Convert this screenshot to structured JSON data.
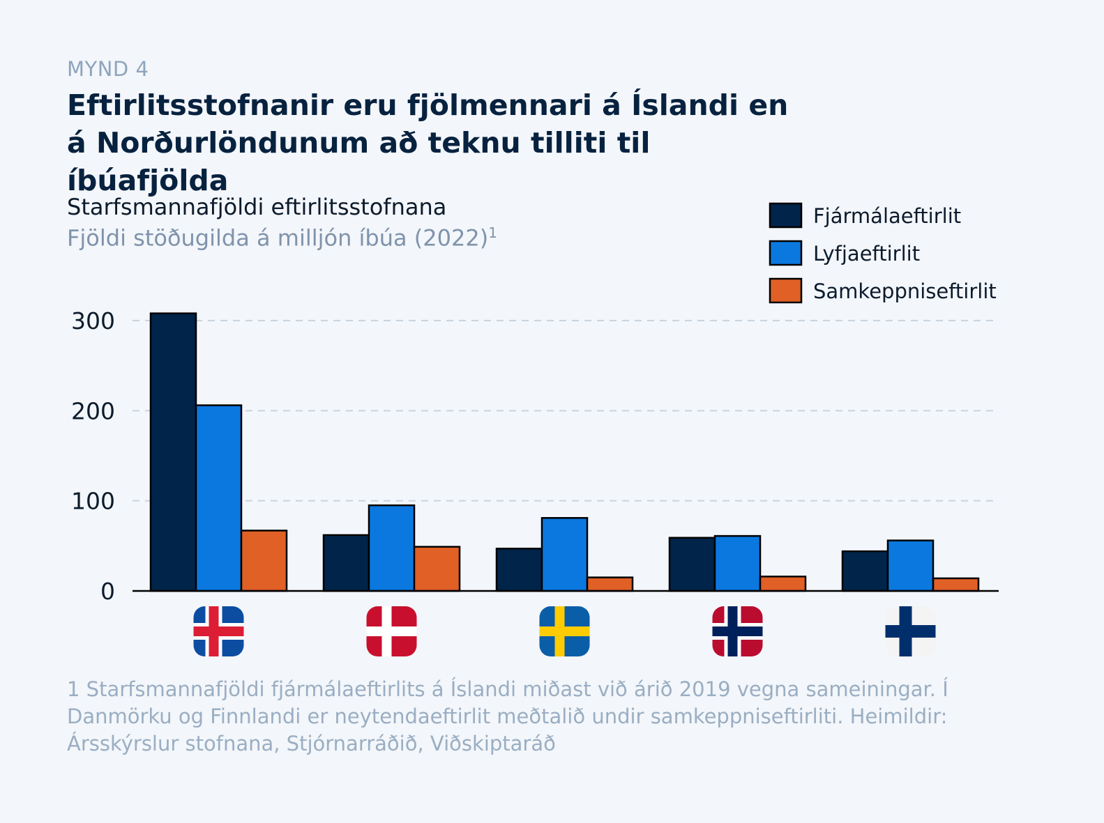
{
  "header": {
    "kicker": "MYND 4",
    "title": "Eftirlitsstofnanir eru fjölmennari á Íslandi en á Norðurlöndunum að teknu tilliti til íbúafjölda",
    "subtitle": "Starfsmannafjöldi eftirlitsstofnana",
    "unit": "Fjöldi stöðugilda á milljón íbúa (2022)",
    "unit_sup": "1"
  },
  "footnote": "1 Starfsmannafjöldi fjármálaeftirlits á Íslandi miðast við árið 2019 vegna sameiningar. Í Danmörku og Finnlandi er neytendaeftirlit meðtalið undir samkeppniseftirliti. Heimildir: Ársskýrslur stofnana, Stjórnarráðið, Viðskiptaráð",
  "colors": {
    "fjarmal": "#00244a",
    "lyfja": "#0b78e0",
    "samkeppni": "#e06026",
    "grid": "#c9d4df",
    "axis": "#0c1b2c"
  },
  "chart_data": {
    "type": "bar",
    "categories": [
      "Ísland",
      "Danmörk",
      "Svíþjóð",
      "Noregur",
      "Finnland"
    ],
    "category_icons": [
      "iceland-flag-icon",
      "denmark-flag-icon",
      "sweden-flag-icon",
      "norway-flag-icon",
      "finland-flag-icon"
    ],
    "series": [
      {
        "name": "Fjármálaeftirlit",
        "color": "#00244a",
        "values": [
          308,
          62,
          47,
          59,
          44
        ]
      },
      {
        "name": "Lyfjaeftirlit",
        "color": "#0b78e0",
        "values": [
          206,
          95,
          81,
          61,
          56
        ]
      },
      {
        "name": "Samkeppniseftirlit",
        "color": "#e06026",
        "values": [
          67,
          49,
          15,
          16,
          14
        ]
      }
    ],
    "yticks": [
      0,
      100,
      200,
      300
    ],
    "ylim": [
      0,
      330
    ],
    "grid": true,
    "legend": "top-right"
  }
}
